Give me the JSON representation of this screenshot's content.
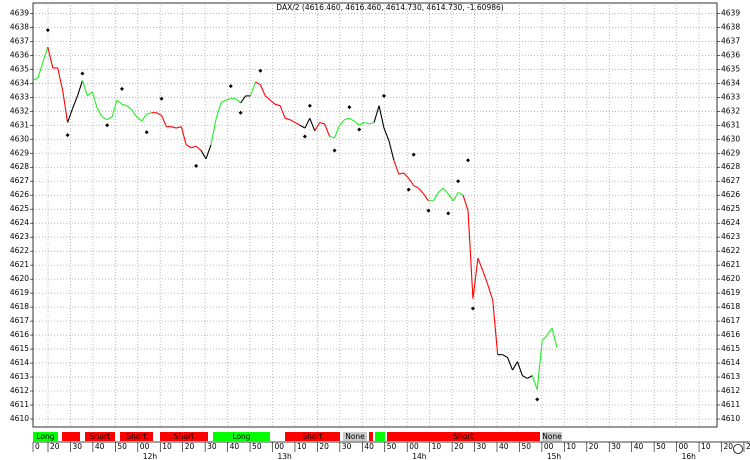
{
  "chart_data": {
    "type": "line",
    "title": "DAX/2 (4616.460, 4616.460, 4614.730, 4614.730, -1.60986)",
    "ylim": [
      4609.5,
      4639.6
    ],
    "yticks": [
      4610,
      4611,
      4612,
      4613,
      4614,
      4615,
      4616,
      4617,
      4618,
      4619,
      4620,
      4621,
      4622,
      4623,
      4624,
      4625,
      4626,
      4627,
      4628,
      4629,
      4630,
      4631,
      4632,
      4633,
      4634,
      4635,
      4636,
      4637,
      4638,
      4639
    ],
    "grid": true,
    "time_ticks": [
      "0",
      "20",
      "30",
      "40",
      "50",
      "00",
      "10",
      "20",
      "30",
      "40",
      "50",
      "00",
      "10",
      "20",
      "30",
      "40",
      "50",
      "00",
      "10",
      "20",
      "30",
      "40",
      "50",
      "00",
      "10",
      "20",
      "30",
      "40",
      "50",
      "00",
      "10",
      "20",
      "2"
    ],
    "hour_labels": [
      "12h",
      "13h",
      "14h",
      "15h",
      "16h"
    ],
    "series": [
      {
        "values": [
          4634.2,
          4634.4,
          4635.5,
          4636.6,
          4635.1,
          4635.1,
          4633.5,
          4631.2,
          4632.2,
          4633.1,
          4634.2,
          4633.1,
          4633.4,
          4632.2,
          4631.6,
          4631.4,
          4631.6,
          4632.8,
          4632.5,
          4632.4,
          4632.1,
          4631.6,
          4631.3,
          4631.8,
          4631.9,
          4631.9,
          4631.7,
          4630.9,
          4630.9,
          4630.8,
          4630.9,
          4629.6,
          4629.4,
          4629.5,
          4629.2,
          4628.6,
          4629.6,
          4631.4,
          4632.6,
          4632.8,
          4632.9,
          4632.9,
          4632.6,
          4633.1,
          4633.1,
          4634.1,
          4633.9,
          4633.1,
          4632.8,
          4632.5,
          4632.4,
          4631.5,
          4631.4,
          4631.2,
          4631.0,
          4630.8,
          4631.5,
          4630.6,
          4631.2,
          4631.1,
          4630.2,
          4630.1,
          4631.0,
          4631.4,
          4631.5,
          4631.3,
          4631.0,
          4631.2,
          4631.1,
          4631.2,
          4632.4,
          4630.8,
          4629.9,
          4628.5,
          4627.5,
          4627.6,
          4627.2,
          4626.7,
          4626.5,
          4626.1,
          4625.6,
          4625.6,
          4626.2,
          4626.5,
          4626.1,
          4625.6,
          4626.2,
          4626.0,
          4624.9,
          4618.6,
          4621.5,
          4620.6,
          4619.6,
          4618.5,
          4614.6,
          4614.6,
          4614.4,
          4613.5,
          4614.1,
          4613.1,
          4612.9,
          4613.1,
          4612.1,
          4615.6,
          4616.0,
          4616.5,
          4615.1
        ],
        "segment_colors": [
          {
            "color": "#22ee22",
            "count": 3
          },
          {
            "color": "#ff0000",
            "count": 4
          },
          {
            "color": "#000000",
            "count": 3
          },
          {
            "color": "#22ee22",
            "count": 14
          },
          {
            "color": "#ff0000",
            "count": 10
          },
          {
            "color": "#000000",
            "count": 2
          },
          {
            "color": "#22ee22",
            "count": 6
          },
          {
            "color": "#000000",
            "count": 2
          },
          {
            "color": "#22ee22",
            "count": 1
          },
          {
            "color": "#ff0000",
            "count": 9
          },
          {
            "color": "#000000",
            "count": 3
          },
          {
            "color": "#ff0000",
            "count": 3
          },
          {
            "color": "#22ee22",
            "count": 9
          },
          {
            "color": "#000000",
            "count": 4
          },
          {
            "color": "#ff0000",
            "count": 7
          },
          {
            "color": "#22ee22",
            "count": 7
          },
          {
            "color": "#ff0000",
            "count": 7
          },
          {
            "color": "#000000",
            "count": 7
          },
          {
            "color": "#22ee22",
            "count": 5
          }
        ]
      },
      {
        "color": "#000000",
        "values": [
          null,
          null,
          null,
          4637.8,
          null,
          null,
          null,
          4630.3,
          null,
          null,
          4634.7,
          null,
          null,
          null,
          null,
          4631.0,
          null,
          null,
          4633.6,
          null,
          null,
          null,
          null,
          4630.5,
          null,
          null,
          4632.9,
          null,
          null,
          null,
          null,
          null,
          null,
          4628.1,
          null,
          null,
          null,
          null,
          null,
          null,
          4633.8,
          null,
          4631.9,
          null,
          null,
          null,
          4634.9,
          null,
          null,
          null,
          null,
          null,
          null,
          null,
          null,
          4630.2,
          4632.4,
          null,
          null,
          null,
          null,
          4629.2,
          null,
          null,
          4632.3,
          null,
          4630.7,
          null,
          null,
          null,
          null,
          4633.1,
          null,
          null,
          null,
          null,
          4626.4,
          4628.9,
          null,
          null,
          4624.9,
          null,
          null,
          null,
          4624.7,
          null,
          4627.0,
          null,
          4628.5,
          4617.9,
          null,
          null,
          null,
          null,
          null,
          null,
          null,
          null,
          null,
          null,
          null,
          null,
          4611.4,
          null,
          null,
          null,
          null
        ]
      }
    ],
    "signals": [
      {
        "label": "Long",
        "color": "#00ff00"
      },
      {
        "color": "#ff0000"
      },
      {
        "label": "Short",
        "color": "#ff0000"
      },
      {
        "label": "Short",
        "color": "#ff0000"
      },
      {
        "label": "Short",
        "color": "#ff0000"
      },
      {
        "label": "Long",
        "color": "#00ff00"
      },
      {
        "label": "Short",
        "color": "#ff0000"
      },
      {
        "label": "None",
        "color": "#c8c8c8"
      },
      {
        "color": "#ff0000"
      },
      {
        "color": "#00ff00"
      },
      {
        "label": "Short",
        "color": "#ff0000"
      },
      {
        "label": "None",
        "color": "#c8c8c8"
      }
    ]
  }
}
